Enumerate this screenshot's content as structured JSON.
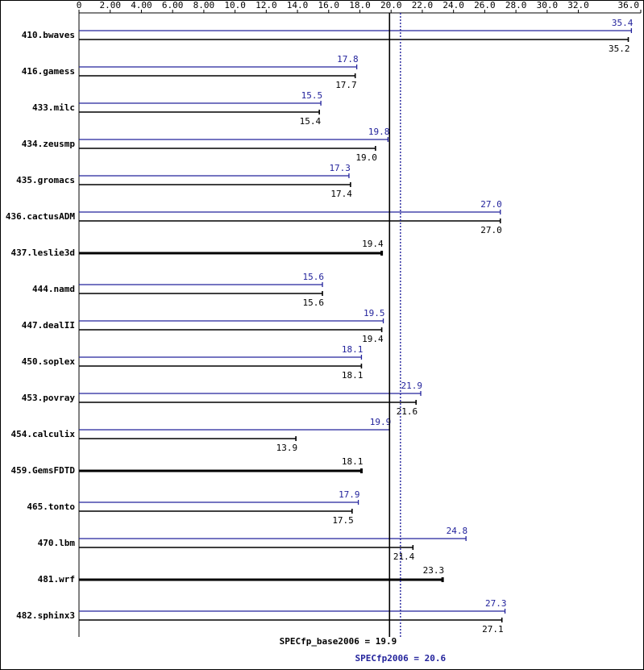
{
  "chart_data": {
    "type": "bar",
    "orientation": "horizontal",
    "categories": [
      "410.bwaves",
      "416.gamess",
      "433.milc",
      "434.zeusmp",
      "435.gromacs",
      "436.cactusADM",
      "437.leslie3d",
      "444.namd",
      "447.dealII",
      "450.soplex",
      "453.povray",
      "454.calculix",
      "459.GemsFDTD",
      "465.tonto",
      "470.lbm",
      "481.wrf",
      "482.sphinx3"
    ],
    "series": [
      {
        "color": "#23239c",
        "values": [
          35.4,
          17.8,
          15.5,
          19.8,
          17.3,
          27.0,
          null,
          15.6,
          19.5,
          18.1,
          21.9,
          19.9,
          null,
          17.9,
          24.8,
          null,
          27.3
        ],
        "value_labels": [
          "35.4",
          "17.8",
          "15.5",
          "19.8",
          "17.3",
          "27.0",
          null,
          "15.6",
          "19.5",
          "18.1",
          "21.9",
          "19.9",
          null,
          "17.9",
          "24.8",
          null,
          "27.3"
        ]
      },
      {
        "color": "#000000",
        "values": [
          35.2,
          17.7,
          15.4,
          19.0,
          17.4,
          27.0,
          19.4,
          15.6,
          19.4,
          18.1,
          21.6,
          13.9,
          18.1,
          17.5,
          21.4,
          23.3,
          27.1
        ],
        "value_labels": [
          "35.2",
          "17.7",
          "15.4",
          "19.0",
          "17.4",
          "27.0",
          "19.4",
          "15.6",
          "19.4",
          "18.1",
          "21.6",
          "13.9",
          "18.1",
          "17.5",
          "21.4",
          "23.3",
          "27.1"
        ]
      }
    ],
    "xlim": [
      0,
      36
    ],
    "xticks": [
      0,
      {
        "value": 2,
        "label": "2.00"
      },
      {
        "value": 4,
        "label": "4.00"
      },
      {
        "value": 6,
        "label": "6.00"
      },
      {
        "value": 8,
        "label": "8.00"
      },
      {
        "value": 10,
        "label": "10.0"
      },
      {
        "value": 12,
        "label": "12.0"
      },
      {
        "value": 14,
        "label": "14.0"
      },
      {
        "value": 16,
        "label": "16.0"
      },
      {
        "value": 18,
        "label": "18.0"
      },
      {
        "value": 20,
        "label": "20.0"
      },
      {
        "value": 22,
        "label": "22.0"
      },
      {
        "value": 24,
        "label": "24.0"
      },
      {
        "value": 26,
        "label": "26.0"
      },
      {
        "value": 28,
        "label": "28.0"
      },
      {
        "value": 30,
        "label": "30.0"
      },
      {
        "value": 32,
        "label": "32.0"
      },
      {
        "value": 36,
        "label": "36.0"
      }
    ],
    "reference_lines": [
      {
        "label": "SPECfp_base2006 = 19.9",
        "value": 19.9,
        "color": "#000000"
      },
      {
        "label": "SPECfp2006 = 20.6",
        "value": 20.6,
        "color": "#23239c"
      }
    ]
  }
}
